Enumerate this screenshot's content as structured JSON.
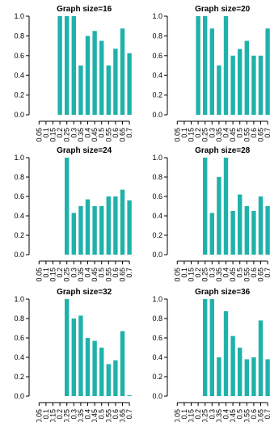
{
  "chart_data": [
    {
      "type": "bar",
      "title": "Graph size=16",
      "categories": [
        "0.05",
        "0.1",
        "0.15",
        "0.2",
        "0.25",
        "0.3",
        "0.35",
        "0.4",
        "0.45",
        "0.5",
        "0.55",
        "0.6",
        "0.65",
        "0.7"
      ],
      "values": [
        0,
        0,
        0,
        1.0,
        1.0,
        1.0,
        0.5,
        0.8,
        0.85,
        0.75,
        0.5,
        0.67,
        0.875,
        0.625
      ],
      "yticks": [
        "0.0",
        "0.2",
        "0.4",
        "0.6",
        "0.8",
        "1.0"
      ],
      "ylim": [
        0,
        1
      ],
      "color": "#20b2aa"
    },
    {
      "type": "bar",
      "title": "Graph size=20",
      "categories": [
        "0.05",
        "0.1",
        "0.15",
        "0.2",
        "0.25",
        "0.3",
        "0.35",
        "0.4",
        "0.45",
        "0.5",
        "0.55",
        "0.6",
        "0.65",
        "0.7"
      ],
      "values": [
        0,
        0,
        0,
        1.0,
        1.0,
        0.875,
        0.5,
        1.0,
        0.6,
        0.667,
        0.75,
        0.6,
        0.6,
        0.875
      ],
      "yticks": [
        "0.0",
        "0.2",
        "0.4",
        "0.6",
        "0.8",
        "1.0"
      ],
      "ylim": [
        0,
        1
      ],
      "color": "#20b2aa"
    },
    {
      "type": "bar",
      "title": "Graph size=24",
      "categories": [
        "0.05",
        "0.1",
        "0.15",
        "0.2",
        "0.25",
        "0.3",
        "0.35",
        "0.4",
        "0.45",
        "0.5",
        "0.55",
        "0.6",
        "0.65",
        "0.7"
      ],
      "values": [
        0,
        0,
        0,
        0,
        1.0,
        0.43,
        0.5,
        0.57,
        0.5,
        0.5,
        0.6,
        0.6,
        0.67,
        0.56
      ],
      "yticks": [
        "0.0",
        "0.2",
        "0.4",
        "0.6",
        "0.8",
        "1.0"
      ],
      "ylim": [
        0,
        1
      ],
      "color": "#20b2aa"
    },
    {
      "type": "bar",
      "title": "Graph size=28",
      "categories": [
        "0.05",
        "0.1",
        "0.15",
        "0.2",
        "0.25",
        "0.3",
        "0.35",
        "0.4",
        "0.45",
        "0.5",
        "0.55",
        "0.6",
        "0.65",
        "0.7"
      ],
      "values": [
        0,
        0,
        0,
        0,
        1.0,
        0.43,
        0.8,
        1.0,
        0.45,
        0.62,
        0.5,
        0.45,
        0.6,
        0.5
      ],
      "yticks": [
        "0.0",
        "0.2",
        "0.4",
        "0.6",
        "0.8",
        "1.0"
      ],
      "ylim": [
        0,
        1
      ],
      "color": "#20b2aa"
    },
    {
      "type": "bar",
      "title": "Graph size=32",
      "categories": [
        "0.05",
        "0.1",
        "0.15",
        "0.2",
        "0.25",
        "0.3",
        "0.35",
        "0.4",
        "0.45",
        "0.5",
        "0.55",
        "0.6",
        "0.65",
        "0.7"
      ],
      "values": [
        0,
        0,
        0,
        0,
        1.0,
        0.8,
        0.83,
        0.6,
        0.57,
        0.5,
        0.33,
        0.37,
        0.67,
        0.01
      ],
      "yticks": [
        "0.0",
        "0.2",
        "0.4",
        "0.6",
        "0.8",
        "1.0"
      ],
      "ylim": [
        0,
        1
      ],
      "color": "#20b2aa"
    },
    {
      "type": "bar",
      "title": "Graph size=36",
      "categories": [
        "0.05",
        "0.1",
        "0.15",
        "0.2",
        "0.25",
        "0.3",
        "0.35",
        "0.4",
        "0.45",
        "0.5",
        "0.55",
        "0.6",
        "0.65",
        "0.7"
      ],
      "values": [
        0,
        0,
        0,
        0,
        1.0,
        1.0,
        0.4,
        0.875,
        0.62,
        0.5,
        0.38,
        0.4,
        0.78,
        0.38
      ],
      "yticks": [
        "0.0",
        "0.2",
        "0.4",
        "0.6",
        "0.8",
        "1.0"
      ],
      "ylim": [
        0,
        1
      ],
      "color": "#20b2aa"
    }
  ]
}
